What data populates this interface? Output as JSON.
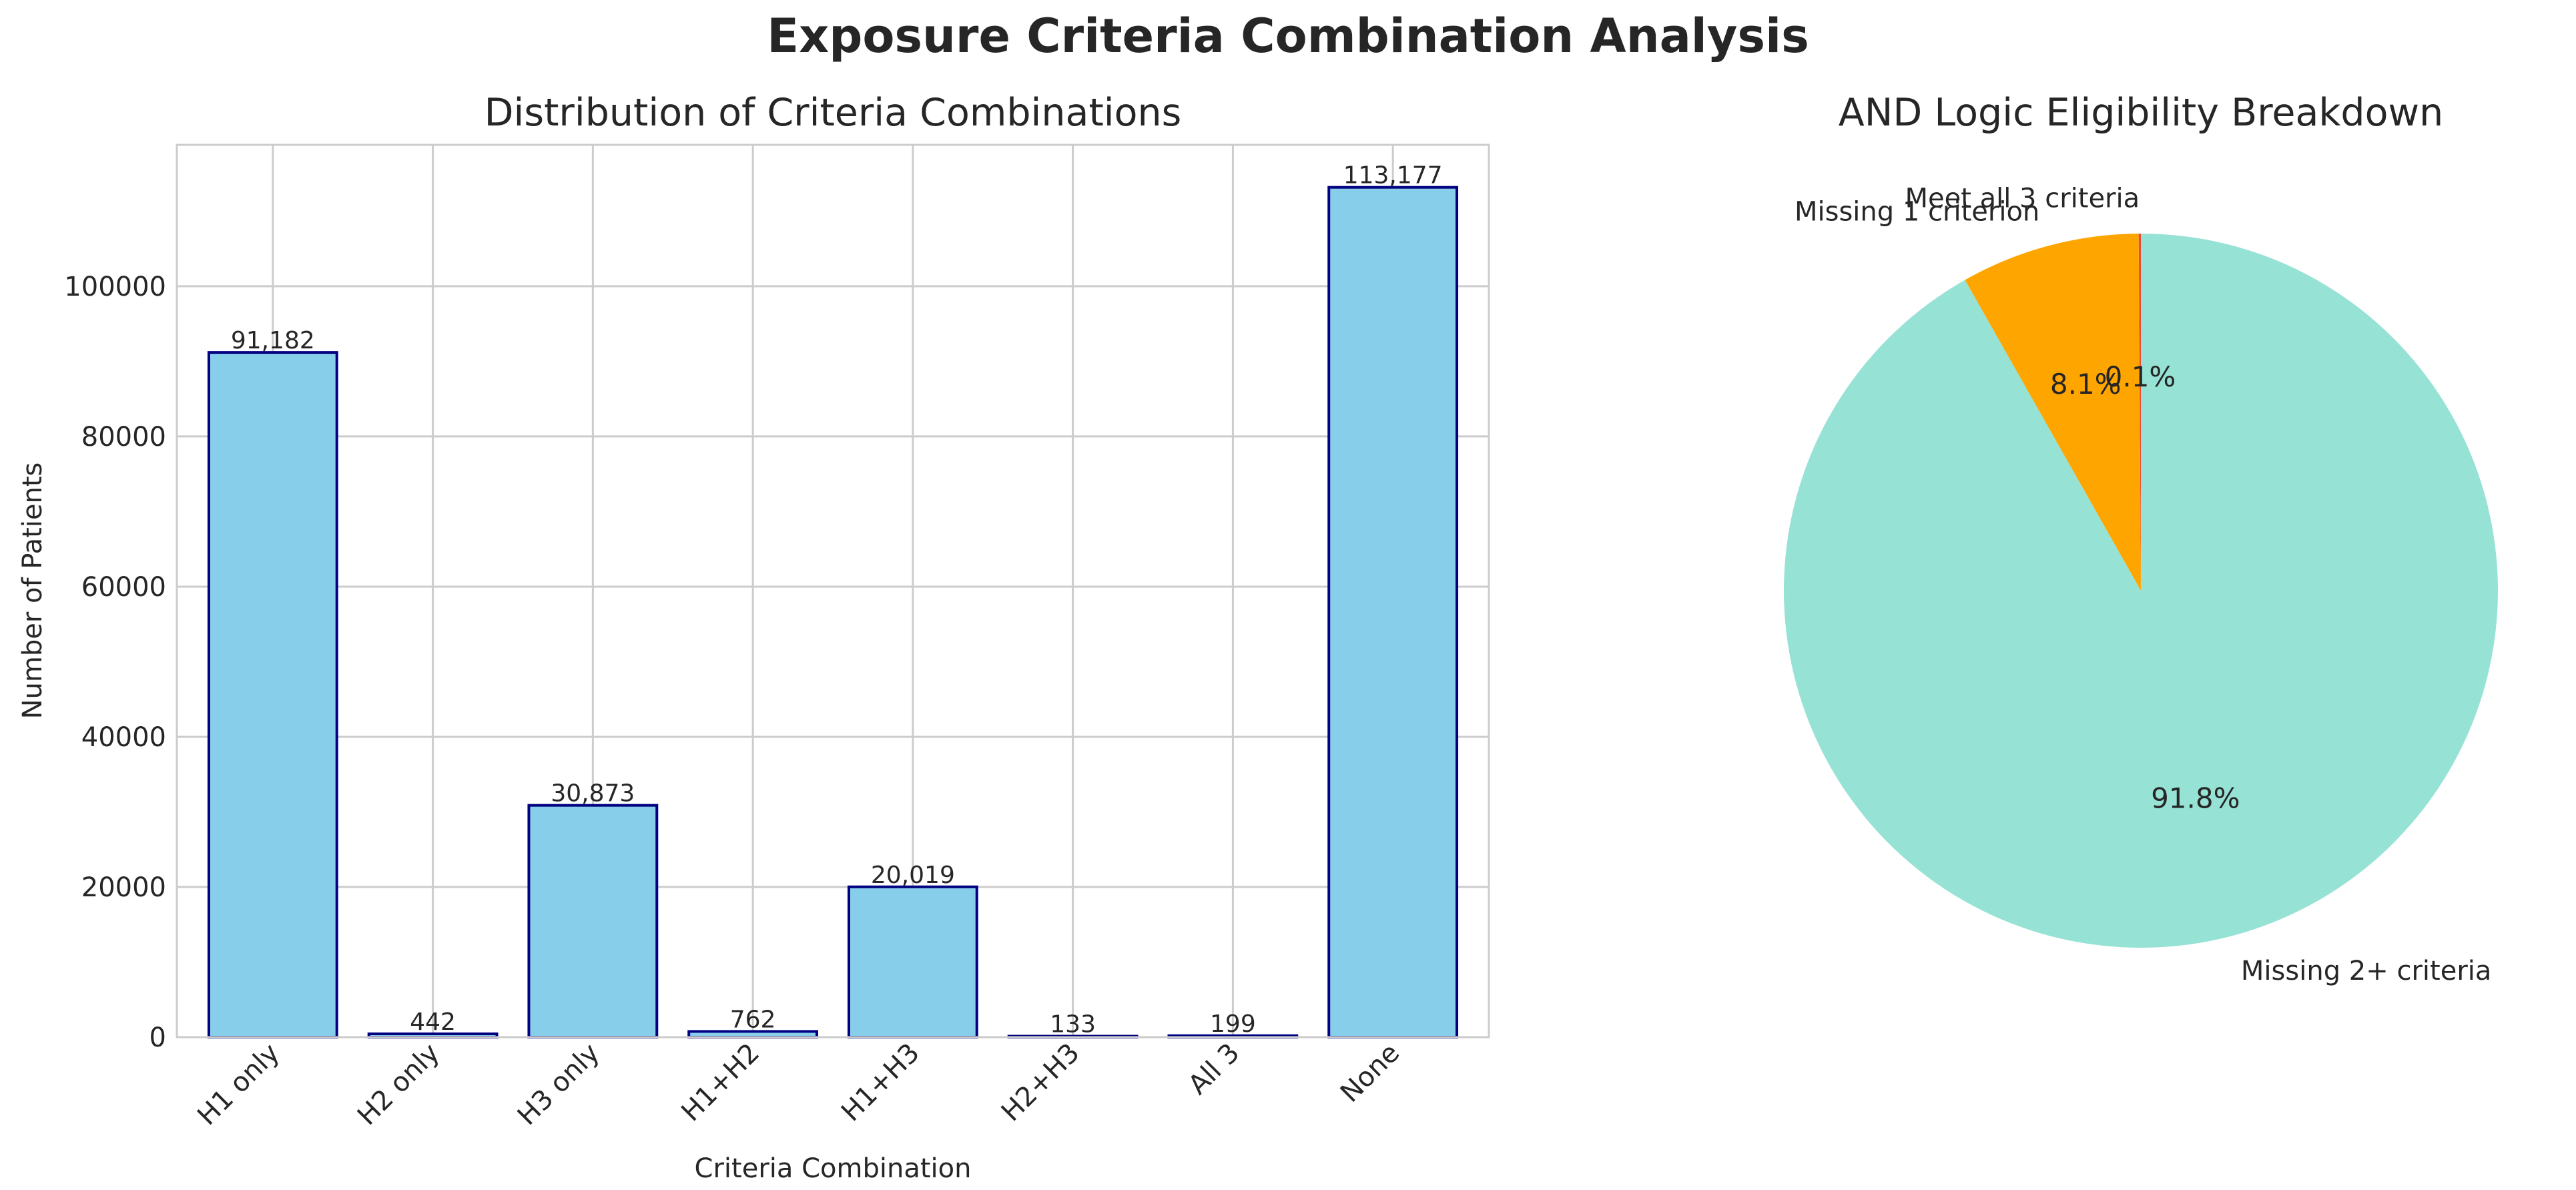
{
  "figure": {
    "title": "Exposure Criteria Combination Analysis"
  },
  "chart_data": [
    {
      "type": "bar",
      "title": "Distribution of Criteria Combinations",
      "xlabel": "Criteria Combination",
      "ylabel": "Number of Patients",
      "categories": [
        "H1 only",
        "H2 only",
        "H3 only",
        "H1+H2",
        "H1+H3",
        "H2+H3",
        "All 3",
        "None"
      ],
      "values": [
        91182,
        442,
        30873,
        762,
        20019,
        133,
        199,
        113177
      ],
      "value_labels": [
        "91,182",
        "442",
        "30,873",
        "762",
        "20,019",
        "133",
        "199",
        "113,177"
      ],
      "ylim": [
        0,
        118836
      ],
      "yticks": [
        0,
        20000,
        40000,
        60000,
        80000,
        100000
      ],
      "ytick_labels": [
        "0",
        "20000",
        "40000",
        "60000",
        "80000",
        "100000"
      ],
      "grid": true,
      "bar_color": "#87CEEB",
      "edge_color": "#000080"
    },
    {
      "type": "pie",
      "title": "AND Logic Eligibility Breakdown",
      "slices": [
        {
          "label": "Meet all 3 criteria",
          "value": 0.1,
          "pct_label": "0.1%",
          "color": "#e74c3c"
        },
        {
          "label": "Missing 1 criterion",
          "value": 8.1,
          "pct_label": "8.1%",
          "color": "#FFA500"
        },
        {
          "label": "Missing 2+ criteria",
          "value": 91.8,
          "pct_label": "91.8%",
          "color": "#96E2D5"
        }
      ],
      "start_angle": 90
    }
  ]
}
